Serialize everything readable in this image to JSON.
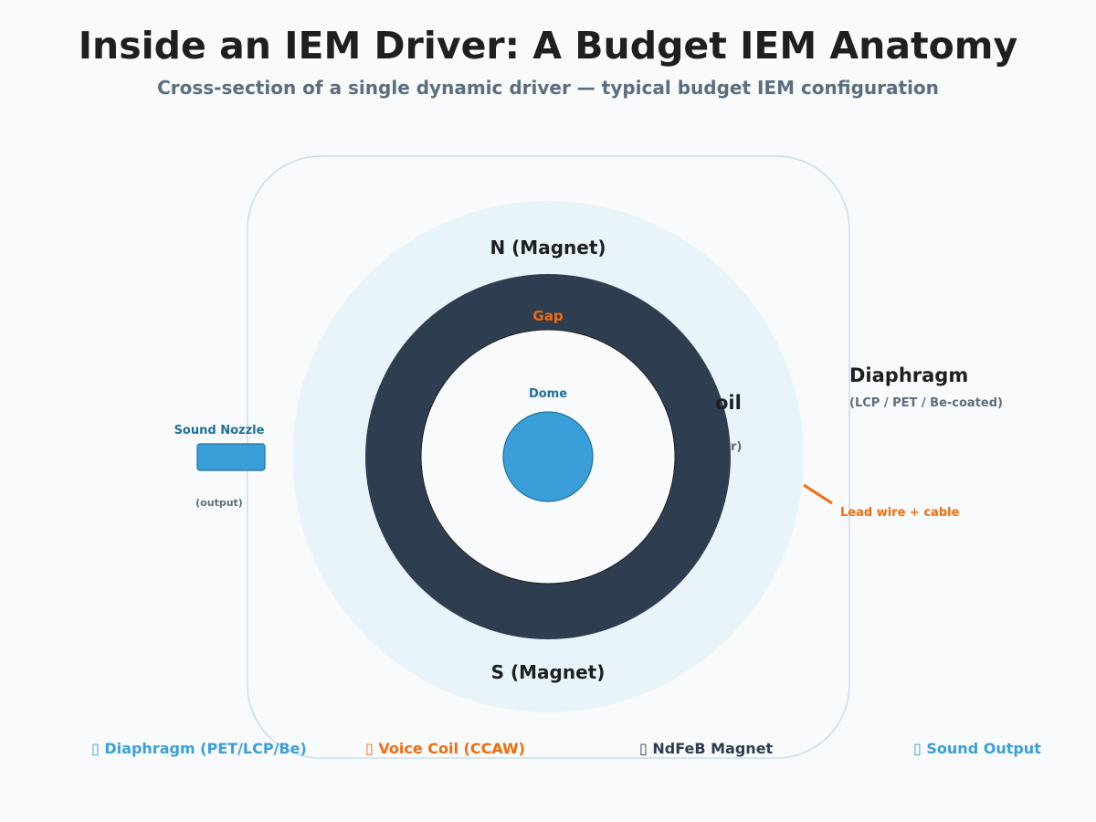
{
  "title": "Inside an IEM Driver: A Budget IEM Anatomy",
  "subtitle": "Cross-section of a single dynamic driver — typical budget IEM configuration",
  "labels": {
    "magnet_north": "N (Magnet)",
    "magnet_south": "S (Magnet)",
    "gap": "Gap",
    "dome": "Dome",
    "voice_coil_partial": "oil",
    "voice_coil_sub_partial": "r)",
    "diaphragm": "Diaphragm",
    "diaphragm_materials": "(LCP / PET / Be-coated)",
    "sound_nozzle": "Sound Nozzle",
    "sound_nozzle_sub": "(output)",
    "lead_wire": "Lead wire + cable"
  },
  "legend": [
    {
      "icon": "diaphragm-swatch-icon",
      "glyph": "▯",
      "text": "Diaphragm (PET/LCP/Be)",
      "color": "#3a9fd8"
    },
    {
      "icon": "voice-coil-swatch-icon",
      "glyph": "▯",
      "text": "Voice Coil (CCAW)",
      "color": "#f26c0d"
    },
    {
      "icon": "magnet-swatch-icon",
      "glyph": "▯",
      "text": "NdFeB Magnet",
      "color": "#2e3d50"
    },
    {
      "icon": "sound-output-swatch-icon",
      "glyph": "▯",
      "text": "Sound Output",
      "color": "#3a9fd8"
    }
  ],
  "colors": {
    "housing_fill": "#f8fafc",
    "housing_stroke": "#c9dfeb",
    "diaphragm_area": "#e9f4fa",
    "magnet": "#2e3d50",
    "dome": "#3a9fd8",
    "accent_orange": "#f26c0d",
    "label_blue": "#1f6f9b",
    "label_gray": "#5c6e7d",
    "label_dark": "#1e1f21"
  }
}
